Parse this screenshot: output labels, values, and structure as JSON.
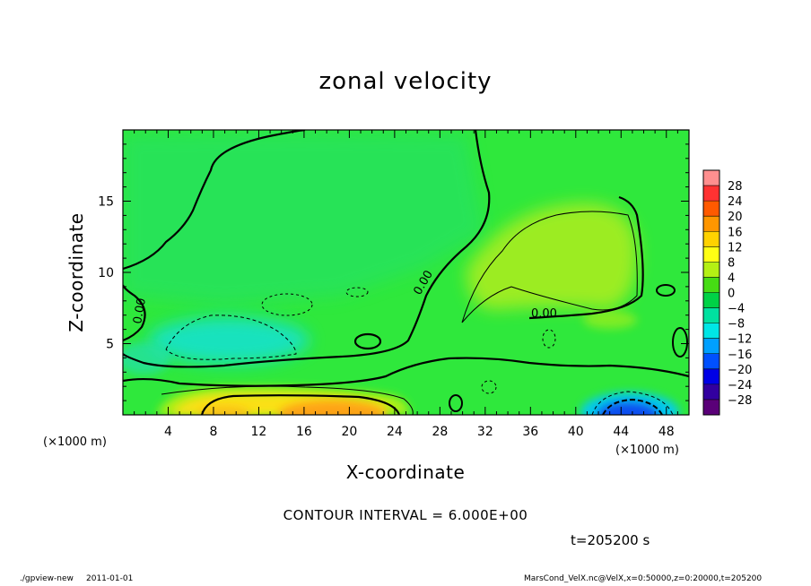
{
  "footer": {
    "program": "./gpview-new",
    "date": "2011-01-01",
    "source": "MarsCond_VelX.nc@VelX,x=0:50000,z=0:20000,t=205200"
  },
  "annotations": {
    "contour_interval": "CONTOUR INTERVAL = 6.000E+00",
    "time": "t=205200 s",
    "contour_label": "0.00"
  },
  "colors": {
    "background_field": "#2fe83c",
    "contour_line": "#000000",
    "frame": "#000000"
  },
  "chart_data": {
    "type": "heatmap",
    "title": "zonal velocity",
    "xlabel": "X-coordinate",
    "ylabel": "Z-coordinate",
    "x_unit": "(×1000 m)",
    "z_unit": "(×1000 m)",
    "xlim": [
      0,
      50
    ],
    "ylim": [
      0,
      20
    ],
    "x_ticks": [
      4,
      8,
      12,
      16,
      20,
      24,
      28,
      32,
      36,
      40,
      44,
      48
    ],
    "y_ticks": [
      5,
      10,
      15
    ],
    "contour_interval": 6.0,
    "colorbar": {
      "levels": [
        28,
        24,
        20,
        16,
        12,
        8,
        4,
        0,
        -4,
        -8,
        -12,
        -16,
        -20,
        -24,
        -28
      ],
      "colors": [
        "#ff8f8f",
        "#ff3232",
        "#ff5a00",
        "#ff9600",
        "#ffd200",
        "#ffff14",
        "#b4f014",
        "#46dc14",
        "#00d246",
        "#00e1a0",
        "#00e6e6",
        "#00a0ff",
        "#0050ff",
        "#0000e6",
        "#3200a0",
        "#5a0078"
      ]
    },
    "features": [
      {
        "x": 9,
        "z": 5,
        "value": -10
      },
      {
        "x": 18,
        "z": 1,
        "value": 14
      },
      {
        "x": 9,
        "z": 1,
        "value": 10
      },
      {
        "x": 44,
        "z": 0.7,
        "value": -22
      },
      {
        "x": 37,
        "z": 10,
        "value": 7
      },
      {
        "x": 40,
        "z": 13,
        "value": 5
      }
    ]
  }
}
